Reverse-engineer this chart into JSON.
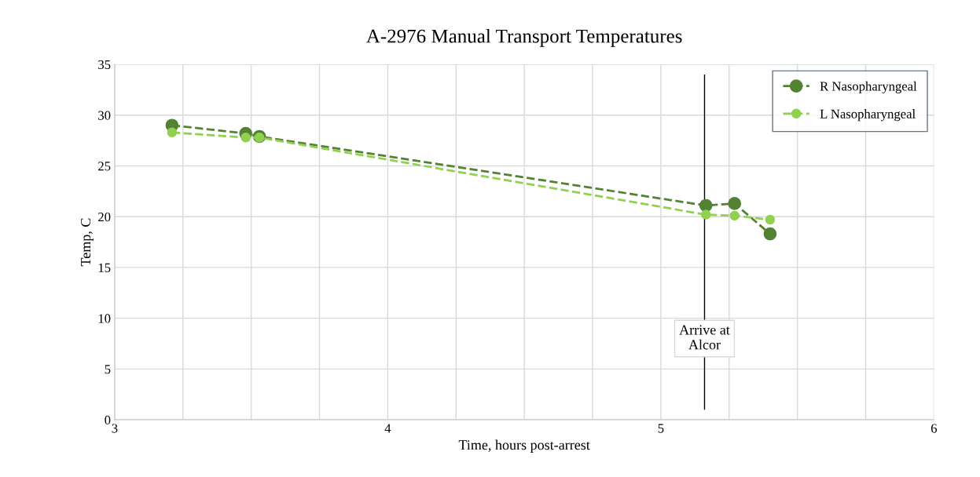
{
  "chart_data": {
    "type": "line",
    "title": "A-2976 Manual Transport Temperatures",
    "xlabel": "Time, hours post-arrest",
    "ylabel": "Temp, C",
    "xlim": [
      3,
      6
    ],
    "xticks": [
      3,
      {
        "value": 3.25,
        "label": null
      },
      {
        "value": 3.5,
        "label": null
      },
      {
        "value": 3.75,
        "label": null
      },
      4,
      {
        "value": 4.25,
        "label": null
      },
      {
        "value": 4.5,
        "label": null
      },
      {
        "value": 4.75,
        "label": null
      },
      5,
      {
        "value": 5.25,
        "label": null
      },
      {
        "value": 5.5,
        "label": null
      },
      {
        "value": 5.75,
        "label": null
      },
      6
    ],
    "ylim": [
      0,
      35
    ],
    "yticks": [
      0,
      5,
      10,
      15,
      20,
      25,
      30,
      35
    ],
    "x": [
      3.21,
      3.48,
      3.53,
      5.165,
      5.27,
      5.4
    ],
    "series": [
      {
        "name": "R Nasopharyngeal",
        "color": "#548235",
        "values": [
          29.0,
          28.2,
          27.9,
          21.1,
          21.3,
          18.3
        ]
      },
      {
        "name": "L Nasopharyngeal",
        "color": "#92d050",
        "values": [
          28.3,
          27.8,
          27.8,
          20.2,
          20.1,
          19.7
        ]
      }
    ],
    "ref_lines": [
      {
        "axis": "x",
        "value": 5.16,
        "label": "Arrive at\nAlcor",
        "color": "#000000"
      }
    ],
    "grid": true,
    "legend": "top right",
    "marker": "circle",
    "line_style": "dashed"
  }
}
